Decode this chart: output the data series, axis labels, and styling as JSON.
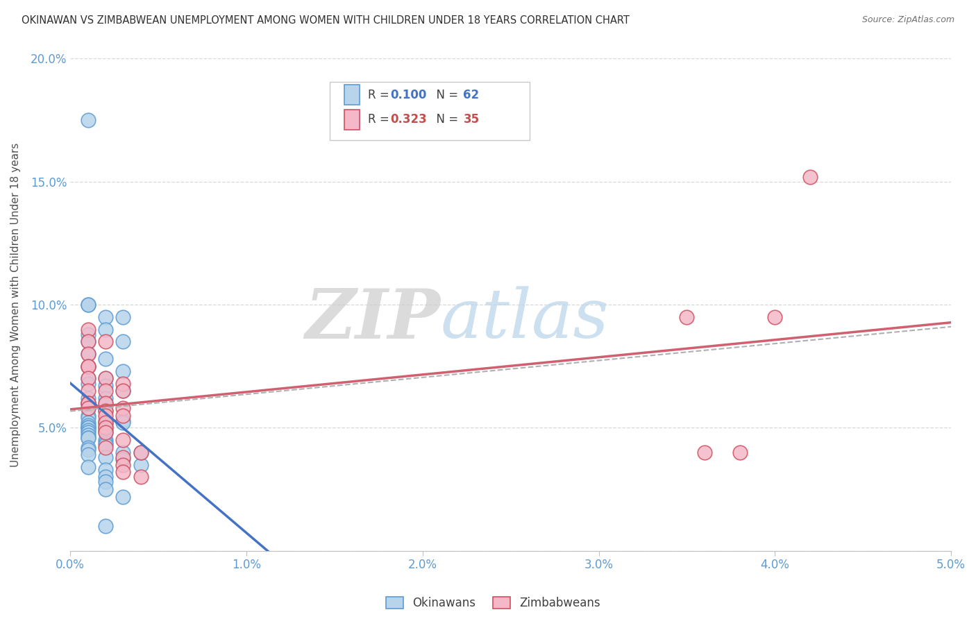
{
  "title": "OKINAWAN VS ZIMBABWEAN UNEMPLOYMENT AMONG WOMEN WITH CHILDREN UNDER 18 YEARS CORRELATION CHART",
  "source": "Source: ZipAtlas.com",
  "ylabel": "Unemployment Among Women with Children Under 18 years",
  "xlim": [
    0.0,
    0.05
  ],
  "ylim": [
    0.0,
    0.2
  ],
  "xtick_labels": [
    "0.0%",
    "1.0%",
    "2.0%",
    "3.0%",
    "4.0%",
    "5.0%"
  ],
  "ytick_labels": [
    "",
    "5.0%",
    "10.0%",
    "15.0%",
    "20.0%"
  ],
  "okinawan_face_color": "#b8d4ea",
  "okinawan_edge_color": "#5b9bd5",
  "zimbabwean_face_color": "#f4b8c8",
  "zimbabwean_edge_color": "#d05060",
  "okinawan_line_color": "#4472c4",
  "zimbabwean_line_color": "#d06070",
  "combined_line_color": "#b0b0b0",
  "R_okinawan": 0.1,
  "N_okinawan": 62,
  "R_zimbabwean": 0.323,
  "N_zimbabwean": 35,
  "legend_ok_R_color": "#4472c4",
  "legend_zim_R_color": "#c0504d",
  "watermark_zip": "ZIP",
  "watermark_atlas": "atlas",
  "background_color": "#ffffff",
  "ok_x": [
    0.001,
    0.003,
    0.002,
    0.001,
    0.001,
    0.002,
    0.001,
    0.001,
    0.003,
    0.001,
    0.002,
    0.001,
    0.003,
    0.002,
    0.001,
    0.001,
    0.002,
    0.003,
    0.001,
    0.002,
    0.001,
    0.001,
    0.002,
    0.001,
    0.002,
    0.001,
    0.001,
    0.003,
    0.002,
    0.001,
    0.003,
    0.002,
    0.001,
    0.002,
    0.001,
    0.001,
    0.002,
    0.001,
    0.002,
    0.001,
    0.002,
    0.001,
    0.001,
    0.001,
    0.002,
    0.002,
    0.002,
    0.001,
    0.001,
    0.003,
    0.001,
    0.002,
    0.003,
    0.004,
    0.001,
    0.002,
    0.002,
    0.002,
    0.002,
    0.004,
    0.003,
    0.002
  ],
  "ok_y": [
    0.175,
    0.095,
    0.095,
    0.1,
    0.1,
    0.09,
    0.088,
    0.085,
    0.085,
    0.08,
    0.078,
    0.075,
    0.073,
    0.07,
    0.07,
    0.068,
    0.067,
    0.065,
    0.062,
    0.062,
    0.06,
    0.06,
    0.06,
    0.058,
    0.057,
    0.055,
    0.054,
    0.053,
    0.053,
    0.052,
    0.052,
    0.052,
    0.051,
    0.051,
    0.05,
    0.05,
    0.05,
    0.049,
    0.049,
    0.048,
    0.048,
    0.047,
    0.046,
    0.046,
    0.045,
    0.044,
    0.043,
    0.042,
    0.041,
    0.04,
    0.039,
    0.038,
    0.037,
    0.035,
    0.034,
    0.033,
    0.03,
    0.028,
    0.025,
    0.04,
    0.022,
    0.01
  ],
  "zim_x": [
    0.001,
    0.001,
    0.001,
    0.001,
    0.002,
    0.001,
    0.001,
    0.001,
    0.001,
    0.001,
    0.001,
    0.002,
    0.002,
    0.002,
    0.002,
    0.002,
    0.002,
    0.003,
    0.003,
    0.003,
    0.003,
    0.002,
    0.002,
    0.003,
    0.002,
    0.004,
    0.003,
    0.004,
    0.003,
    0.003,
    0.035,
    0.038,
    0.042,
    0.04,
    0.036
  ],
  "zim_y": [
    0.09,
    0.085,
    0.08,
    0.075,
    0.085,
    0.075,
    0.07,
    0.065,
    0.06,
    0.06,
    0.058,
    0.07,
    0.065,
    0.06,
    0.057,
    0.055,
    0.052,
    0.068,
    0.065,
    0.058,
    0.055,
    0.05,
    0.048,
    0.045,
    0.042,
    0.04,
    0.038,
    0.03,
    0.035,
    0.032,
    0.095,
    0.04,
    0.152,
    0.095,
    0.04
  ]
}
